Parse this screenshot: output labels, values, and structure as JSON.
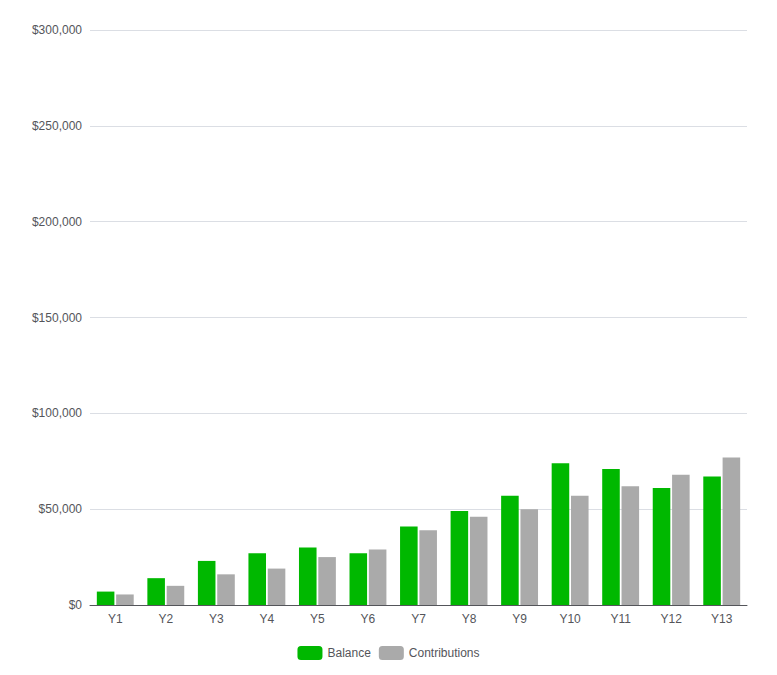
{
  "chart_data": {
    "type": "bar",
    "categories": [
      "Y1",
      "Y2",
      "Y3",
      "Y4",
      "Y5",
      "Y6",
      "Y7",
      "Y8",
      "Y9",
      "Y10",
      "Y11",
      "Y12",
      "Y13"
    ],
    "series": [
      {
        "name": "Balance",
        "color": "#00b800",
        "values": [
          7000,
          14000,
          23000,
          27000,
          30000,
          27000,
          41000,
          49000,
          57000,
          74000,
          71000,
          61000,
          67000
        ]
      },
      {
        "name": "Contributions",
        "color": "#aaaaaa",
        "values": [
          5500,
          10000,
          16000,
          19000,
          25000,
          29000,
          39000,
          46000,
          50000,
          57000,
          62000,
          68000,
          77000
        ]
      }
    ],
    "ylim": [
      0,
      300000
    ],
    "yticks": [
      {
        "value": 0,
        "label": "$0"
      },
      {
        "value": 50000,
        "label": "$50,000"
      },
      {
        "value": 100000,
        "label": "$100,000"
      },
      {
        "value": 150000,
        "label": "$150,000"
      },
      {
        "value": 200000,
        "label": "$200,000"
      },
      {
        "value": 250000,
        "label": "$250,000"
      },
      {
        "value": 300000,
        "label": "$300,000"
      }
    ],
    "grid": true,
    "legend": "bottom"
  }
}
